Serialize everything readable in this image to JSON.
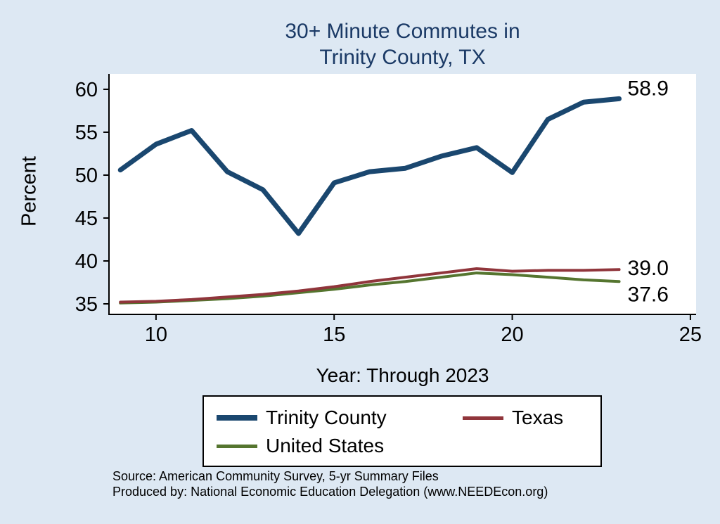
{
  "title": {
    "line1": "30+ Minute Commutes in",
    "line2": "Trinity County, TX"
  },
  "axes": {
    "y_label": "Percent",
    "x_label": "Year: Through 2023"
  },
  "legend": {
    "items": [
      {
        "label": "Trinity County",
        "color": "#1a476f"
      },
      {
        "label": "Texas",
        "color": "#90353b"
      },
      {
        "label": "United States",
        "color": "#55752f"
      }
    ]
  },
  "footer": {
    "line1": "Source: American Community Survey, 5-yr Summary Files",
    "line2": "Produced by: National Economic Education Delegation (www.NEEDEcon.org)"
  },
  "colors": {
    "background": "#dde8f3",
    "plot_bg": "#ffffff",
    "title": "#1b3a66",
    "navy": "#1a476f",
    "maroon": "#90353b",
    "olive": "#55752f"
  },
  "chart_data": {
    "type": "line",
    "title": "30+ Minute Commutes in Trinity County, TX",
    "xlabel": "Year: Through 2023",
    "ylabel": "Percent",
    "x": [
      9,
      10,
      11,
      12,
      13,
      14,
      15,
      16,
      17,
      18,
      19,
      20,
      21,
      22,
      23
    ],
    "series": [
      {
        "name": "Trinity County",
        "color": "#1a476f",
        "width": 7,
        "values": [
          50.6,
          53.6,
          55.2,
          50.4,
          48.3,
          43.2,
          49.1,
          50.4,
          50.8,
          52.2,
          53.2,
          50.3,
          56.5,
          58.5,
          58.9
        ]
      },
      {
        "name": "Texas",
        "color": "#90353b",
        "width": 4,
        "values": [
          35.2,
          35.3,
          35.5,
          35.8,
          36.1,
          36.5,
          37.0,
          37.6,
          38.1,
          38.6,
          39.1,
          38.8,
          38.9,
          38.9,
          39.0
        ]
      },
      {
        "name": "United States",
        "color": "#55752f",
        "width": 4,
        "values": [
          35.1,
          35.2,
          35.4,
          35.6,
          35.9,
          36.3,
          36.7,
          37.2,
          37.6,
          38.1,
          38.6,
          38.4,
          38.1,
          37.8,
          37.6
        ]
      }
    ],
    "end_labels": [
      "58.9",
      "39.0",
      "37.6"
    ],
    "x_ticks": [
      10,
      15,
      20,
      25
    ],
    "y_ticks": [
      35,
      40,
      45,
      50,
      55,
      60
    ],
    "xlim": [
      8.68,
      25.16
    ],
    "ylim": [
      33.77,
      61.8
    ],
    "grid": false,
    "legend_position": "bottom"
  }
}
